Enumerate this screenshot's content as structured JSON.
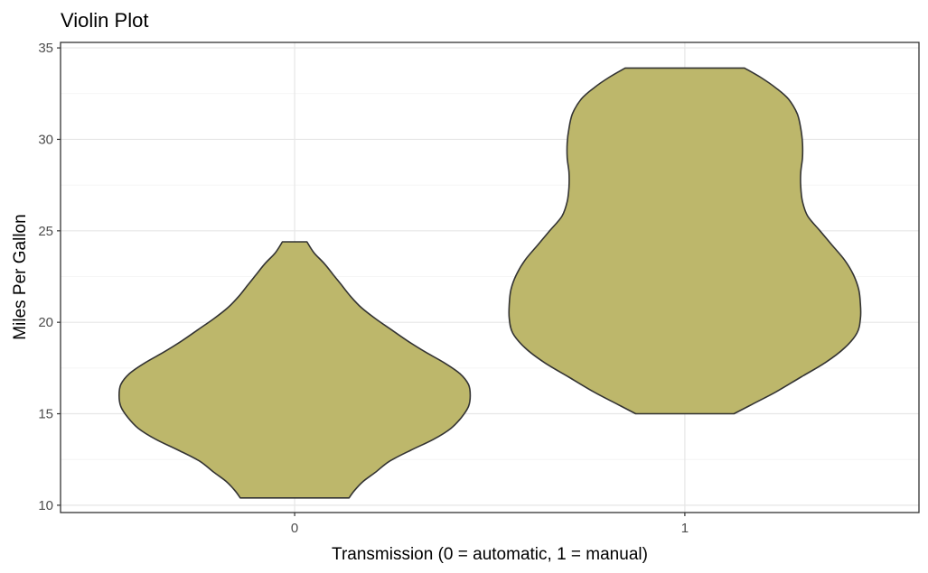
{
  "chart_data": {
    "type": "violin",
    "title": "Violin Plot",
    "xlabel": "Transmission (0 = automatic, 1 = manual)",
    "ylabel": "Miles Per Gallon",
    "categories": [
      "0",
      "1"
    ],
    "ylim": [
      9.6,
      35.3
    ],
    "yticks": [
      10,
      15,
      20,
      25,
      30,
      35
    ],
    "fill_color": "#bdb76b",
    "outline_color": "#333333",
    "grid": true,
    "violins": [
      {
        "category": "0",
        "min": 10.4,
        "max": 24.4,
        "density": [
          [
            10.4,
            0.31
          ],
          [
            10.8,
            0.34
          ],
          [
            11.3,
            0.39
          ],
          [
            11.8,
            0.46
          ],
          [
            12.4,
            0.54
          ],
          [
            13.0,
            0.66
          ],
          [
            13.6,
            0.79
          ],
          [
            14.2,
            0.89
          ],
          [
            14.8,
            0.95
          ],
          [
            15.4,
            0.99
          ],
          [
            16.0,
            1.0
          ],
          [
            16.6,
            0.99
          ],
          [
            17.2,
            0.94
          ],
          [
            17.8,
            0.85
          ],
          [
            18.4,
            0.74
          ],
          [
            19.0,
            0.64
          ],
          [
            19.6,
            0.55
          ],
          [
            20.2,
            0.46
          ],
          [
            20.8,
            0.38
          ],
          [
            21.4,
            0.32
          ],
          [
            22.0,
            0.27
          ],
          [
            22.6,
            0.22
          ],
          [
            23.2,
            0.17
          ],
          [
            23.8,
            0.11
          ],
          [
            24.4,
            0.07
          ]
        ]
      },
      {
        "category": "1",
        "min": 15.0,
        "max": 33.9,
        "density": [
          [
            15.0,
            0.28
          ],
          [
            15.5,
            0.38
          ],
          [
            16.2,
            0.52
          ],
          [
            17.0,
            0.66
          ],
          [
            17.8,
            0.8
          ],
          [
            18.6,
            0.91
          ],
          [
            19.4,
            0.98
          ],
          [
            20.2,
            1.0
          ],
          [
            21.0,
            1.0
          ],
          [
            21.8,
            0.99
          ],
          [
            22.6,
            0.96
          ],
          [
            23.4,
            0.91
          ],
          [
            24.2,
            0.84
          ],
          [
            25.0,
            0.77
          ],
          [
            25.8,
            0.7
          ],
          [
            26.6,
            0.67
          ],
          [
            27.4,
            0.66
          ],
          [
            28.2,
            0.66
          ],
          [
            29.0,
            0.67
          ],
          [
            29.8,
            0.67
          ],
          [
            30.6,
            0.66
          ],
          [
            31.4,
            0.64
          ],
          [
            32.2,
            0.59
          ],
          [
            32.8,
            0.52
          ],
          [
            33.4,
            0.43
          ],
          [
            33.9,
            0.34
          ]
        ]
      }
    ]
  }
}
